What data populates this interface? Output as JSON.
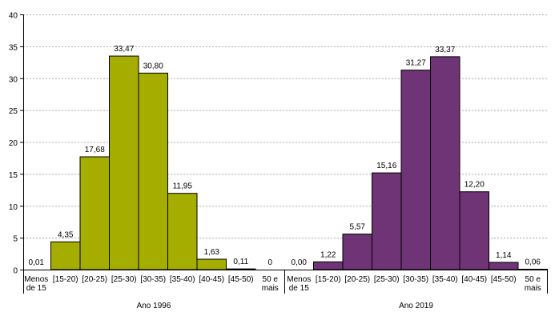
{
  "chart_data": {
    "type": "bar",
    "title": "",
    "xlabel": "",
    "ylabel": "",
    "ylim": [
      0,
      40
    ],
    "yticks": [
      "0",
      "5",
      "10",
      "15",
      "20",
      "25",
      "30",
      "35",
      "40"
    ],
    "grid": true,
    "gridStyle": "dashed horizontal",
    "legend": "none",
    "categories": [
      [
        "Menos",
        "de 15"
      ],
      [
        "[15-20)"
      ],
      [
        "[20-25)"
      ],
      [
        "[25-30)"
      ],
      [
        "[30-35)"
      ],
      [
        "[35-40)"
      ],
      [
        "[40-45)"
      ],
      [
        "[45-50)"
      ],
      [
        "50 e",
        "mais"
      ]
    ],
    "groups": [
      {
        "label": "Ano 1996",
        "color": "#a4ad00",
        "values": [
          0.01,
          4.35,
          17.68,
          33.47,
          30.8,
          11.95,
          1.63,
          0.11,
          0
        ],
        "value_labels": [
          "0,01",
          "4,35",
          "17,68",
          "33,47",
          "30,80",
          "11,95",
          "1,63",
          "0,11",
          "0"
        ]
      },
      {
        "label": "Ano 2019",
        "color": "#6e3475",
        "values": [
          0.0,
          1.22,
          5.57,
          15.16,
          31.27,
          33.37,
          12.2,
          1.14,
          0.06
        ],
        "value_labels": [
          "0,00",
          "1,22",
          "5,57",
          "15,16",
          "31,27",
          "33,37",
          "12,20",
          "1,14",
          "0,06"
        ]
      }
    ]
  }
}
